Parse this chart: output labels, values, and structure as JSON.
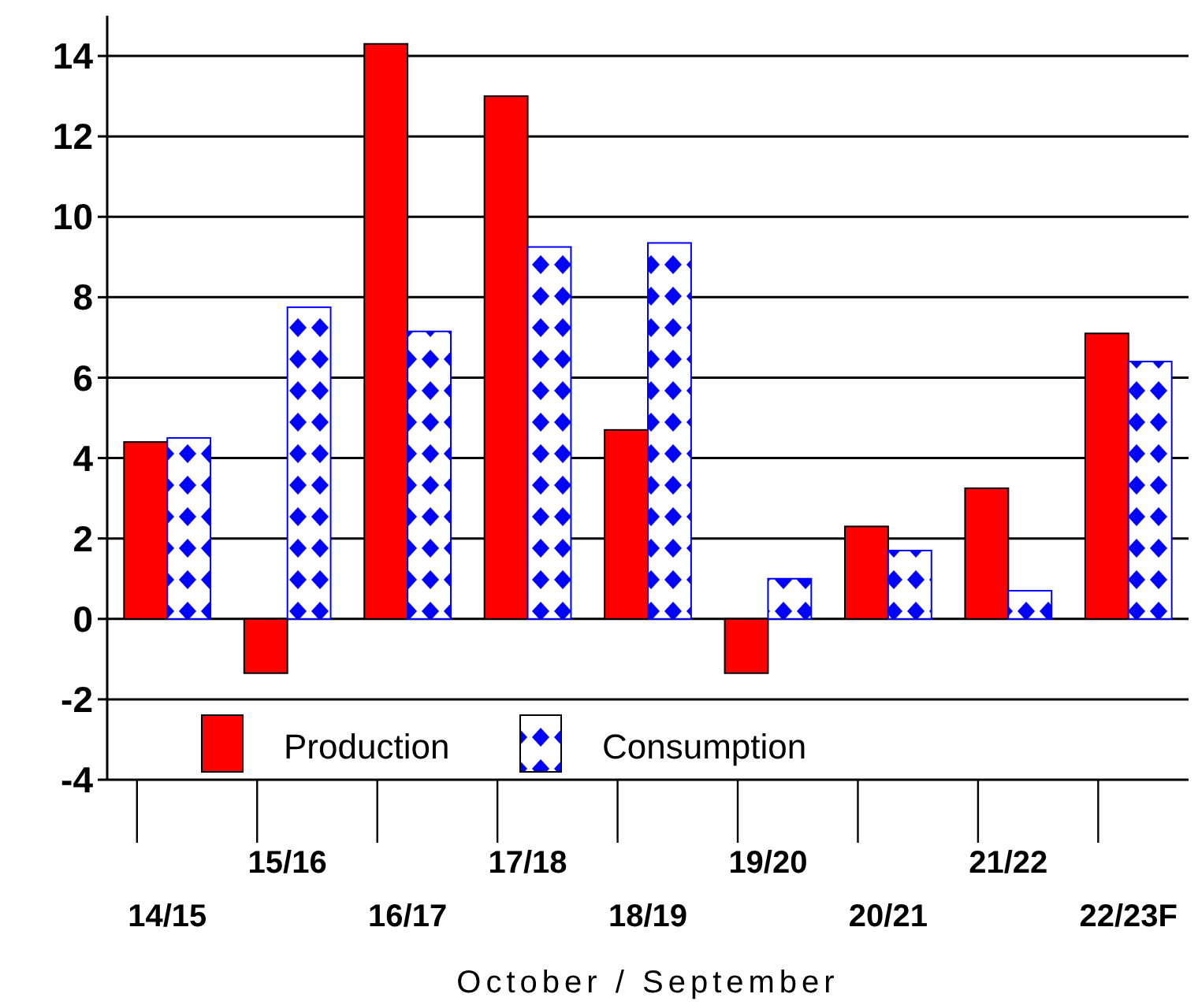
{
  "chart_data": {
    "type": "bar",
    "xlabel": "October / September",
    "categories": [
      "14/15",
      "15/16",
      "16/17",
      "17/18",
      "18/19",
      "19/20",
      "20/21",
      "21/22",
      "22/23F"
    ],
    "series": [
      {
        "name": "Production",
        "color": "#ff0000",
        "values": [
          4.4,
          -1.35,
          14.3,
          13.0,
          4.7,
          -1.35,
          2.3,
          3.25,
          7.1
        ]
      },
      {
        "name": "Consumption",
        "color": "#0000ff",
        "values": [
          4.5,
          7.75,
          7.15,
          9.25,
          9.35,
          1.0,
          1.7,
          0.7,
          6.4
        ]
      }
    ],
    "ylim": [
      -4,
      15
    ],
    "yticks": [
      -4,
      -2,
      0,
      2,
      4,
      6,
      8,
      10,
      12,
      14
    ],
    "grid": "y",
    "legend": "bottom"
  }
}
